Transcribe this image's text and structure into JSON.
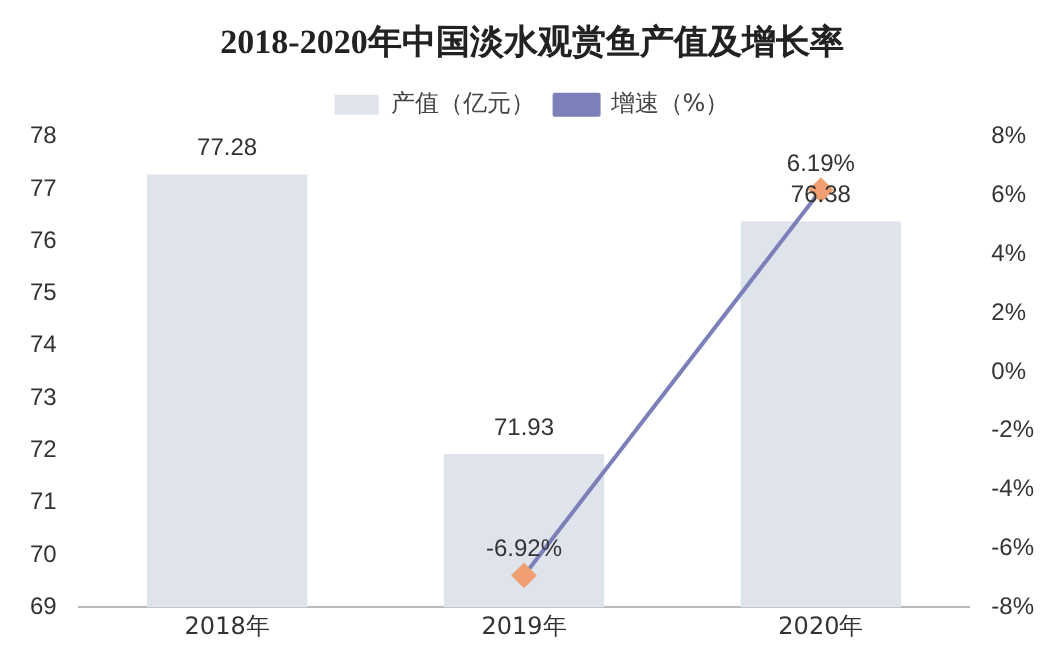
{
  "chart_data": {
    "type": "bar",
    "title": "2018-2020年中国淡水观赏鱼产值及增长率",
    "categories": [
      "2018年",
      "2019年",
      "2020年"
    ],
    "series": [
      {
        "name": "产值（亿元）",
        "color": "#dfe3ec",
        "values": [
          77.28,
          71.93,
          76.38
        ],
        "value_labels": [
          "77.28",
          "71.93",
          "76.38"
        ]
      },
      {
        "name": "增速（%）",
        "type": "line",
        "axis": "y2",
        "color": "#7b80b8",
        "values": [
          null,
          -6.92,
          6.19
        ],
        "value_labels": [
          null,
          "-6.92%",
          "6.19%"
        ]
      }
    ],
    "ylim": [
      69,
      78
    ],
    "yticks": [
      69,
      70,
      71,
      72,
      73,
      74,
      75,
      76,
      77,
      78
    ],
    "y2lim": [
      -8,
      8
    ],
    "y2ticks": [
      {
        "value": -8,
        "label": "-8%"
      },
      {
        "value": -6,
        "label": "-6%"
      },
      {
        "value": -4,
        "label": "-4%"
      },
      {
        "value": -2,
        "label": "-2%"
      },
      {
        "value": 0,
        "label": "0%"
      },
      {
        "value": 2,
        "label": "2%"
      },
      {
        "value": 4,
        "label": "4%"
      },
      {
        "value": 6,
        "label": "6%"
      },
      {
        "value": 8,
        "label": "8%"
      }
    ],
    "legend": "top",
    "marker": "diamond",
    "line_style": "solid"
  }
}
